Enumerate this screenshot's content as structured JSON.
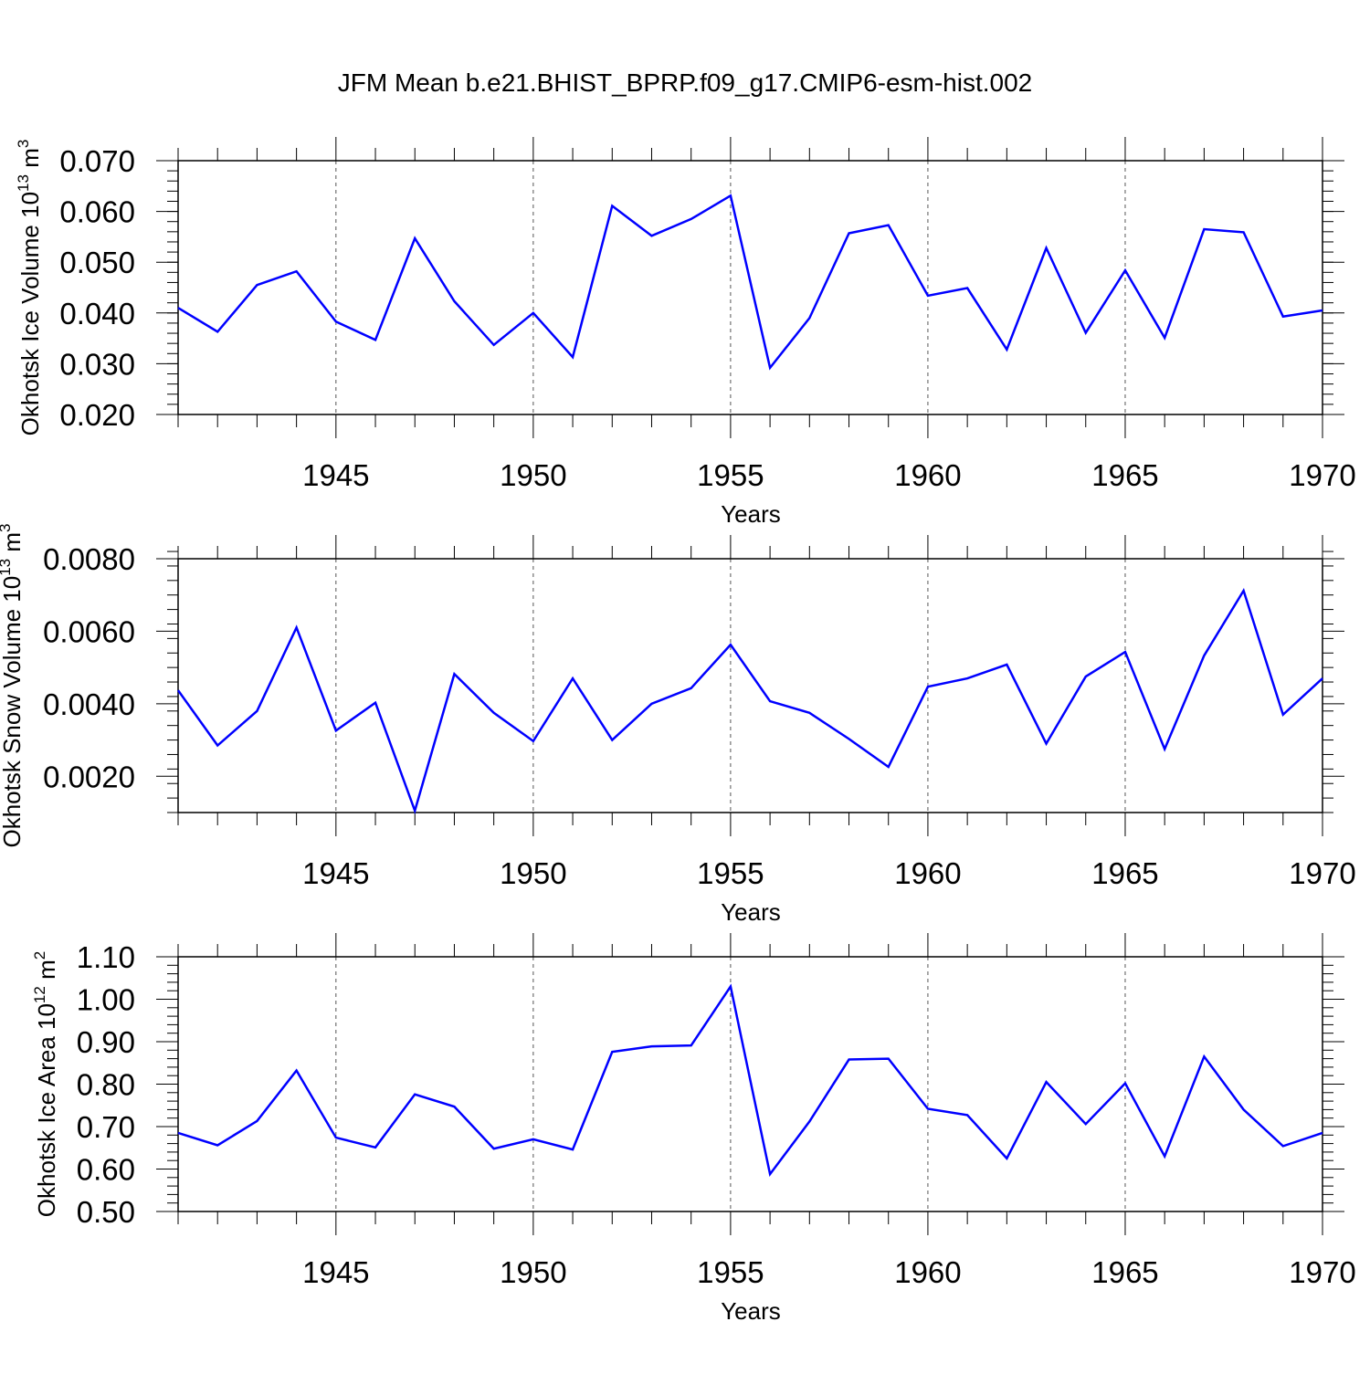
{
  "title": "JFM Mean b.e21.BHIST_BPRP.f09_g17.CMIP6-esm-hist.002",
  "chart_data": [
    {
      "type": "line",
      "ylabel": {
        "prefix": "Okhotsk Ice Volume 10",
        "exponent": "13",
        "unit": " m",
        "unit_exponent": "3"
      },
      "xlabel": "Years",
      "xlim": [
        1941,
        1970
      ],
      "ylim": [
        0.02,
        0.07
      ],
      "y_major_ticks": [
        0.02,
        0.03,
        0.04,
        0.05,
        0.06,
        0.07
      ],
      "y_tick_labels": [
        "0.020",
        "0.030",
        "0.040",
        "0.050",
        "0.060",
        "0.070"
      ],
      "y_minor_step": 0.002,
      "color": "#0000ff",
      "x": [
        1941,
        1942,
        1943,
        1944,
        1945,
        1946,
        1947,
        1948,
        1949,
        1950,
        1951,
        1952,
        1953,
        1954,
        1955,
        1956,
        1957,
        1958,
        1959,
        1960,
        1961,
        1962,
        1963,
        1964,
        1965,
        1966,
        1967,
        1968,
        1969,
        1970
      ],
      "values": [
        0.041,
        0.0363,
        0.0455,
        0.0482,
        0.0383,
        0.0347,
        0.0547,
        0.0423,
        0.0337,
        0.04,
        0.0313,
        0.0611,
        0.0552,
        0.0585,
        0.0631,
        0.0292,
        0.039,
        0.0557,
        0.0573,
        0.0434,
        0.0449,
        0.0328,
        0.0528,
        0.0361,
        0.0484,
        0.0351,
        0.0565,
        0.0559,
        0.0393,
        0.0405
      ]
    },
    {
      "type": "line",
      "ylabel": {
        "prefix": "Okhotsk Snow Volume 10",
        "exponent": "13",
        "unit": " m",
        "unit_exponent": "3"
      },
      "xlabel": "Years",
      "xlim": [
        1941,
        1970
      ],
      "ylim": [
        0.001,
        0.008
      ],
      "y_major_ticks": [
        0.002,
        0.004,
        0.006,
        0.008
      ],
      "y_tick_labels": [
        "0.0020",
        "0.0040",
        "0.0060",
        "0.0080"
      ],
      "y_minor_step": 0.0004,
      "color": "#0000ff",
      "x": [
        1941,
        1942,
        1943,
        1944,
        1945,
        1946,
        1947,
        1948,
        1949,
        1950,
        1951,
        1952,
        1953,
        1954,
        1955,
        1956,
        1957,
        1958,
        1959,
        1960,
        1961,
        1962,
        1963,
        1964,
        1965,
        1966,
        1967,
        1968,
        1969,
        1970
      ],
      "values": [
        0.00437,
        0.00285,
        0.0038,
        0.0061,
        0.00326,
        0.00403,
        0.00105,
        0.00482,
        0.00375,
        0.00297,
        0.0047,
        0.003,
        0.004,
        0.00443,
        0.00563,
        0.00407,
        0.00375,
        0.00303,
        0.00226,
        0.00447,
        0.0047,
        0.00508,
        0.0029,
        0.00475,
        0.00543,
        0.00275,
        0.00533,
        0.00712,
        0.0037,
        0.0047
      ]
    },
    {
      "type": "line",
      "ylabel": {
        "prefix": "Okhotsk Ice Area 10",
        "exponent": "12",
        "unit": " m",
        "unit_exponent": "2"
      },
      "xlabel": "Years",
      "xlim": [
        1941,
        1970
      ],
      "ylim": [
        0.5,
        1.1
      ],
      "y_major_ticks": [
        0.5,
        0.6,
        0.7,
        0.8,
        0.9,
        1.0,
        1.1
      ],
      "y_tick_labels": [
        "0.50",
        "0.60",
        "0.70",
        "0.80",
        "0.90",
        "1.00",
        "1.10"
      ],
      "y_minor_step": 0.02,
      "color": "#0000ff",
      "x": [
        1941,
        1942,
        1943,
        1944,
        1945,
        1946,
        1947,
        1948,
        1949,
        1950,
        1951,
        1952,
        1953,
        1954,
        1955,
        1956,
        1957,
        1958,
        1959,
        1960,
        1961,
        1962,
        1963,
        1964,
        1965,
        1966,
        1967,
        1968,
        1969,
        1970
      ],
      "values": [
        0.685,
        0.656,
        0.713,
        0.832,
        0.674,
        0.651,
        0.776,
        0.747,
        0.648,
        0.67,
        0.646,
        0.876,
        0.889,
        0.891,
        1.03,
        0.588,
        0.712,
        0.858,
        0.86,
        0.742,
        0.727,
        0.625,
        0.805,
        0.706,
        0.802,
        0.63,
        0.865,
        0.74,
        0.654,
        0.685
      ]
    }
  ],
  "x_major_ticks": [
    1945,
    1950,
    1955,
    1960,
    1965,
    1970
  ],
  "x_tick_labels": [
    "1945",
    "1950",
    "1955",
    "1960",
    "1965",
    "1970"
  ]
}
